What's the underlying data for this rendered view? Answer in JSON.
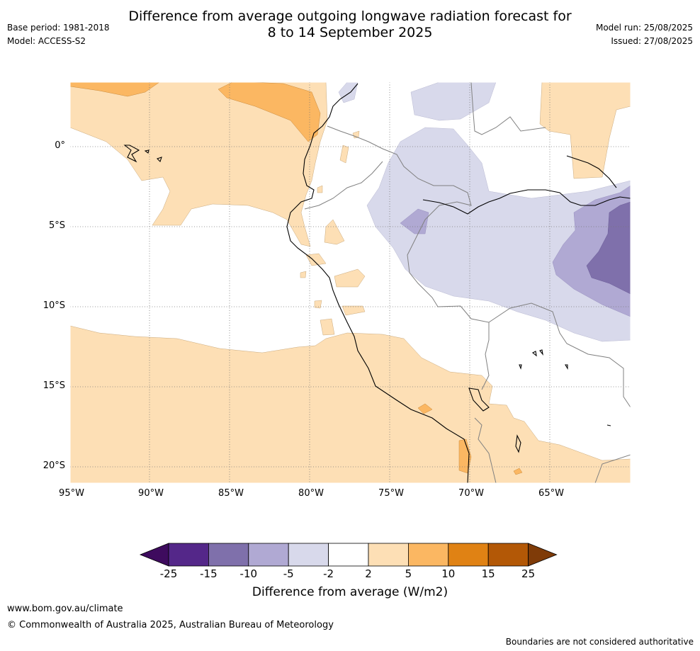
{
  "header": {
    "title_line1": "Difference from average outgoing longwave radiation forecast for",
    "title_line2": "8 to 14 September 2025",
    "base_period": "Base period: 1981-2018",
    "model": "Model: ACCESS-S2",
    "model_run": "Model run: 25/08/2025",
    "issued": "Issued: 27/08/2025"
  },
  "map": {
    "lon_labels": [
      "95°W",
      "90°W",
      "85°W",
      "80°W",
      "75°W",
      "70°W",
      "65°W"
    ],
    "lat_labels": [
      "0°",
      "5°S",
      "10°S",
      "15°S",
      "20°S"
    ],
    "region_colors": {
      "pos_2_5": "#fddfb5",
      "pos_5_10": "#fbb762",
      "neg_2_5": "#d8d9eb",
      "neg_5_10": "#b0a9d3",
      "neg_10_15": "#7f70ab"
    }
  },
  "colorbar": {
    "ticks": [
      "-25",
      "-15",
      "-10",
      "-5",
      "-2",
      "2",
      "5",
      "10",
      "15",
      "25"
    ],
    "colors": [
      "#3e0b5e",
      "#542789",
      "#7f70ab",
      "#b0a9d3",
      "#d8d9eb",
      "#ffffff",
      "#fddfb5",
      "#fbb762",
      "#e08214",
      "#b35806",
      "#7f3b08"
    ],
    "label": "Difference from average (W/m2)"
  },
  "footer": {
    "url": "www.bom.gov.au/climate",
    "copyright": "© Commonwealth of Australia 2025, Australian Bureau of Meteorology",
    "note": "Boundaries are not considered authoritative"
  }
}
